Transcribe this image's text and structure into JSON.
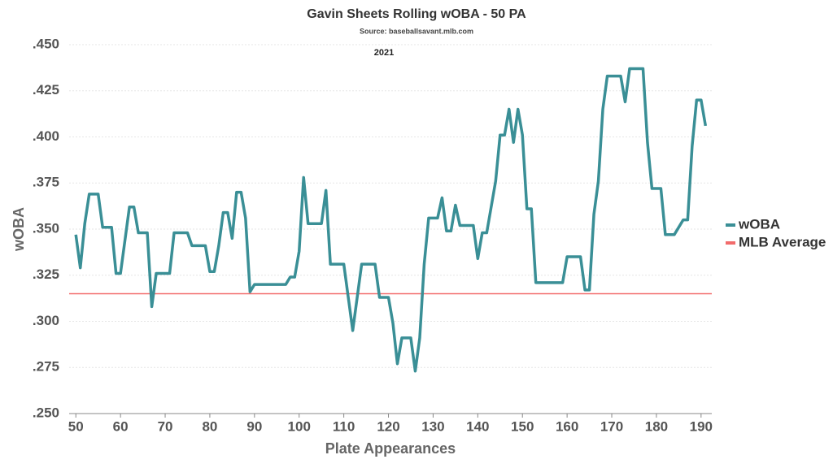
{
  "chart_data": {
    "type": "line",
    "title": "Gavin Sheets Rolling wOBA - 50 PA",
    "subtitle": "Source: baseballsavant.mlb.com",
    "annotation": "2021",
    "x_label": "Plate Appearances",
    "y_label": "wOBA",
    "x": [
      50,
      51,
      52,
      53,
      55,
      56,
      58,
      59,
      60,
      61,
      62,
      63,
      64,
      66,
      67,
      68,
      71,
      72,
      75,
      76,
      79,
      80,
      81,
      82,
      83,
      84,
      85,
      86,
      87,
      88,
      89,
      90,
      97,
      98,
      99,
      100,
      101,
      102,
      105,
      106,
      107,
      110,
      111,
      112,
      113,
      114,
      117,
      118,
      120,
      121,
      122,
      123,
      125,
      126,
      127,
      128,
      129,
      131,
      132,
      133,
      134,
      135,
      136,
      139,
      140,
      141,
      142,
      143,
      144,
      145,
      146,
      147,
      148,
      149,
      150,
      151,
      152,
      153,
      159,
      160,
      163,
      164,
      165,
      166,
      167,
      168,
      169,
      172,
      173,
      174,
      177,
      178,
      179,
      181,
      182,
      184,
      186,
      187,
      188,
      189,
      190,
      191
    ],
    "series": [
      {
        "name": "wOBA",
        "color": "#3a8f96",
        "values": [
          0.347,
          0.329,
          0.353,
          0.369,
          0.369,
          0.351,
          0.351,
          0.326,
          0.326,
          0.344,
          0.362,
          0.362,
          0.348,
          0.348,
          0.308,
          0.326,
          0.326,
          0.348,
          0.348,
          0.341,
          0.341,
          0.327,
          0.327,
          0.341,
          0.359,
          0.359,
          0.345,
          0.37,
          0.37,
          0.356,
          0.316,
          0.32,
          0.32,
          0.324,
          0.324,
          0.338,
          0.378,
          0.353,
          0.353,
          0.371,
          0.331,
          0.331,
          0.313,
          0.295,
          0.313,
          0.331,
          0.331,
          0.313,
          0.313,
          0.299,
          0.277,
          0.291,
          0.291,
          0.273,
          0.291,
          0.331,
          0.356,
          0.356,
          0.367,
          0.349,
          0.349,
          0.363,
          0.352,
          0.352,
          0.334,
          0.348,
          0.348,
          0.362,
          0.376,
          0.401,
          0.401,
          0.415,
          0.397,
          0.415,
          0.401,
          0.361,
          0.361,
          0.321,
          0.321,
          0.335,
          0.335,
          0.317,
          0.317,
          0.358,
          0.376,
          0.415,
          0.433,
          0.433,
          0.419,
          0.437,
          0.437,
          0.397,
          0.372,
          0.372,
          0.347,
          0.347,
          0.355,
          0.355,
          0.395,
          0.42,
          0.42,
          0.406
        ]
      }
    ],
    "reference_lines": [
      {
        "name": "MLB Average",
        "value": 0.315,
        "color": "#f26b6b"
      }
    ],
    "xlim": [
      48.5,
      192.4
    ],
    "xticks": [
      50,
      60,
      70,
      80,
      90,
      100,
      110,
      120,
      130,
      140,
      150,
      160,
      170,
      180,
      190
    ],
    "ylim": [
      0.25,
      0.45
    ],
    "yticks": [
      {
        "value": 0.25,
        "label": ".250"
      },
      {
        "value": 0.275,
        "label": ".275"
      },
      {
        "value": 0.3,
        "label": ".300"
      },
      {
        "value": 0.325,
        "label": ".325"
      },
      {
        "value": 0.35,
        "label": ".350"
      },
      {
        "value": 0.375,
        "label": ".375"
      },
      {
        "value": 0.4,
        "label": ".400"
      },
      {
        "value": 0.425,
        "label": ".425"
      },
      {
        "value": 0.45,
        "label": ".450"
      }
    ],
    "grid": true
  }
}
